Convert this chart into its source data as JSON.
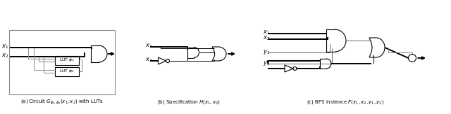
{
  "caption_a": "(a) Circuit $G_{\\phi_1,\\phi_2}(x_1,x_2)$ with LUTs",
  "caption_b": "(b) Specification $H(x_1,x_2)$",
  "caption_c": "(c) BFS instance $F(x_1,x_2,y_1,y_2)$",
  "background_color": "#ffffff",
  "fig_width": 6.4,
  "fig_height": 1.63,
  "dpi": 100
}
